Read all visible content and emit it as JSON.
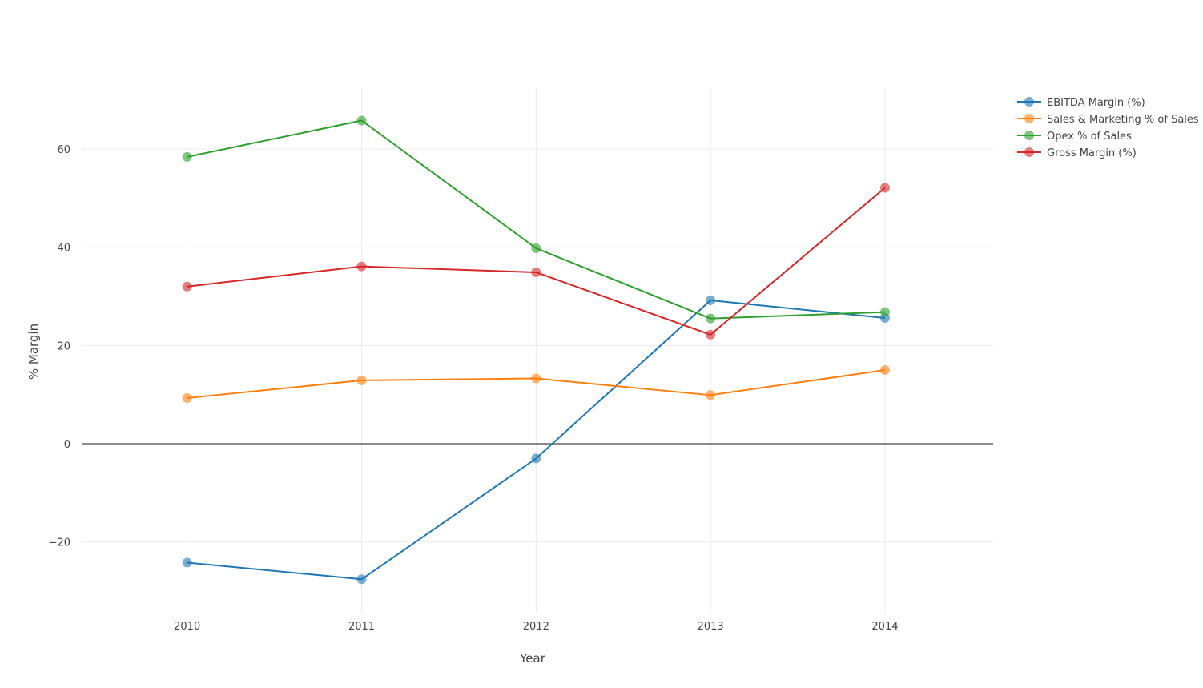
{
  "chart_data": {
    "type": "line",
    "title": "",
    "xlabel": "Year",
    "ylabel": "% Margin",
    "x": [
      2010,
      2011,
      2012,
      2013,
      2014
    ],
    "x_tick_labels": [
      "2010",
      "2011",
      "2012",
      "2013",
      "2014"
    ],
    "xlim": [
      2009.4,
      2014.62
    ],
    "ylim": [
      -34.4,
      72.4
    ],
    "y_ticks": [
      -20,
      0,
      20,
      40,
      60
    ],
    "y_tick_labels": [
      "−20",
      "0",
      "20",
      "40",
      "60"
    ],
    "grid": true,
    "zero_line": true,
    "legend_position": "top-right",
    "series": [
      {
        "name": "EBITDA Margin (%)",
        "color": "#1f77b4",
        "values": [
          -24.2,
          -27.6,
          -3.0,
          29.2,
          25.6
        ]
      },
      {
        "name": "Sales & Marketing % of Sales",
        "color": "#ff7f0e",
        "values": [
          9.3,
          12.9,
          13.3,
          9.9,
          15.0
        ]
      },
      {
        "name": "Opex % of Sales",
        "color": "#2ca02c",
        "values": [
          58.4,
          65.8,
          39.8,
          25.5,
          26.8
        ]
      },
      {
        "name": "Gross Margin (%)",
        "color": "#d62728",
        "values": [
          32.0,
          36.1,
          34.9,
          22.2,
          52.1
        ]
      }
    ]
  }
}
